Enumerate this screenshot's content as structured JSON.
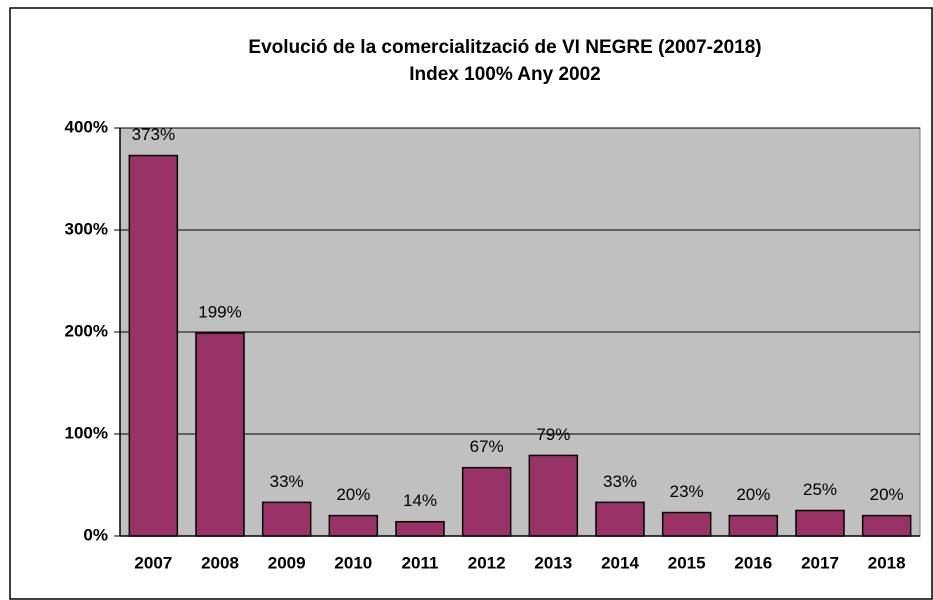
{
  "chart_data": {
    "type": "bar",
    "title": "Evolució de la comercialització de VI NEGRE (2007-2018)",
    "subtitle": "Index 100%  Any 2002",
    "categories": [
      "2007",
      "2008",
      "2009",
      "2010",
      "2011",
      "2012",
      "2013",
      "2014",
      "2015",
      "2016",
      "2017",
      "2018"
    ],
    "values": [
      373,
      199,
      33,
      20,
      14,
      67,
      79,
      33,
      23,
      20,
      25,
      20
    ],
    "value_labels": [
      "373%",
      "199%",
      "33%",
      "20%",
      "14%",
      "67%",
      "79%",
      "33%",
      "23%",
      "20%",
      "25%",
      "20%"
    ],
    "color": "#993366",
    "ylim": [
      0,
      400
    ],
    "yticks": [
      {
        "value": 0,
        "label": "0%"
      },
      {
        "value": 100,
        "label": "100%"
      },
      {
        "value": 200,
        "label": "200%"
      },
      {
        "value": 300,
        "label": "300%"
      },
      {
        "value": 400,
        "label": "400%"
      }
    ],
    "grid": true
  }
}
